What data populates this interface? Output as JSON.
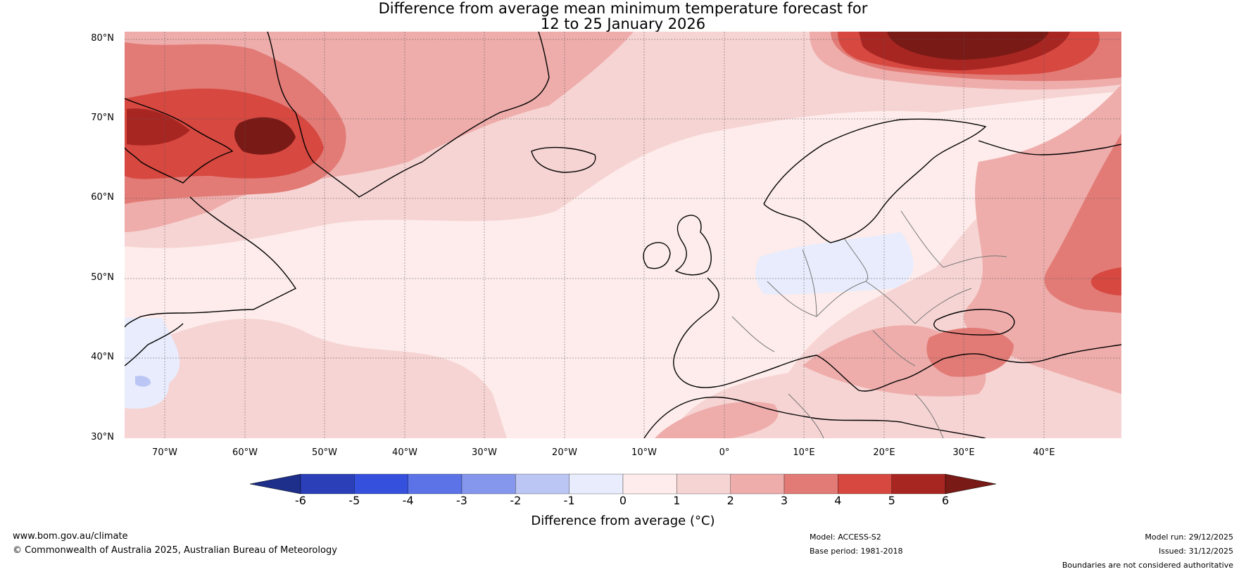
{
  "title_line1": "Difference from average mean minimum temperature forecast for",
  "title_line2": "12 to 25 January 2026",
  "lat_labels": [
    "80°N",
    "70°N",
    "60°N",
    "50°N",
    "40°N",
    "30°N"
  ],
  "lon_labels": [
    "70°W",
    "60°W",
    "50°W",
    "40°W",
    "30°W",
    "20°W",
    "10°W",
    "0°",
    "10°E",
    "20°E",
    "30°E",
    "40°E"
  ],
  "colorbar": {
    "ticks": [
      "-6",
      "-5",
      "-4",
      "-3",
      "-2",
      "-1",
      "0",
      "1",
      "2",
      "3",
      "4",
      "5",
      "6"
    ],
    "colors": [
      "#1d2f8a",
      "#2a3fb8",
      "#3550dc",
      "#5b73e6",
      "#8497ec",
      "#bcc6f4",
      "#e8ecfc",
      "#fdeceb",
      "#f6d4d3",
      "#eeadab",
      "#e27b76",
      "#d64840",
      "#a82622",
      "#7a1a16"
    ],
    "title": "Difference from average (°C)"
  },
  "footer": {
    "website": "www.bom.gov.au/climate",
    "copyright": "© Commonwealth of Australia 2025, Australian Bureau of Meteorology",
    "model": "Model: ACCESS-S2",
    "base_period": "Base period: 1981-2018",
    "model_run": "Model run: 29/12/2025",
    "issued": "Issued: 31/12/2025",
    "disclaimer": "Boundaries are not considered authoritative"
  }
}
